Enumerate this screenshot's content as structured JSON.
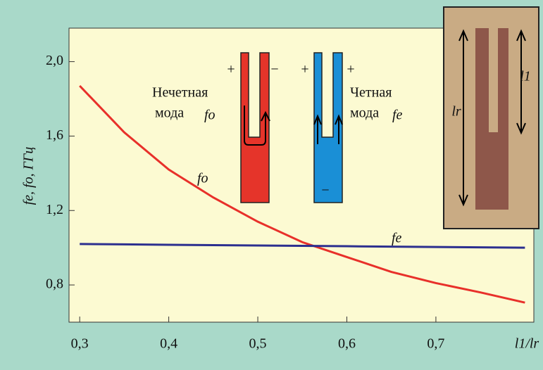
{
  "chart_data": {
    "type": "line",
    "x_label": "l1/lr",
    "y_label": "fe, fo, ГГц",
    "x": [
      0.3,
      0.35,
      0.4,
      0.45,
      0.5,
      0.55,
      0.6,
      0.65,
      0.7,
      0.75,
      0.8
    ],
    "series": [
      {
        "name": "fo",
        "color": "#e8302a",
        "values": [
          1.87,
          1.62,
          1.42,
          1.27,
          1.14,
          1.03,
          0.95,
          0.87,
          0.81,
          0.76,
          0.705
        ]
      },
      {
        "name": "fe",
        "color": "#2c2f8f",
        "values": [
          1.02,
          1.018,
          1.016,
          1.014,
          1.012,
          1.01,
          1.008,
          1.006,
          1.004,
          1.002,
          1.0
        ]
      }
    ],
    "xlim": [
      0.288,
      0.81
    ],
    "ylim": [
      0.6,
      2.18
    ],
    "xticks": [
      {
        "value": 0.3,
        "label": "0,3"
      },
      {
        "value": 0.4,
        "label": "0,4"
      },
      {
        "value": 0.5,
        "label": "0,5"
      },
      {
        "value": 0.6,
        "label": "0,6"
      },
      {
        "value": 0.7,
        "label": "0,7"
      }
    ],
    "yticks": [
      {
        "value": 0.8,
        "label": "0,8"
      },
      {
        "value": 1.2,
        "label": "1,2"
      },
      {
        "value": 1.6,
        "label": "1,6"
      },
      {
        "value": 2.0,
        "label": "2,0"
      }
    ],
    "annotations": [
      "Нечетная",
      "мода",
      "fo",
      "Четная",
      "мода",
      "fe",
      "+",
      "−",
      "+",
      "+",
      "−",
      "l1",
      "lr"
    ]
  }
}
